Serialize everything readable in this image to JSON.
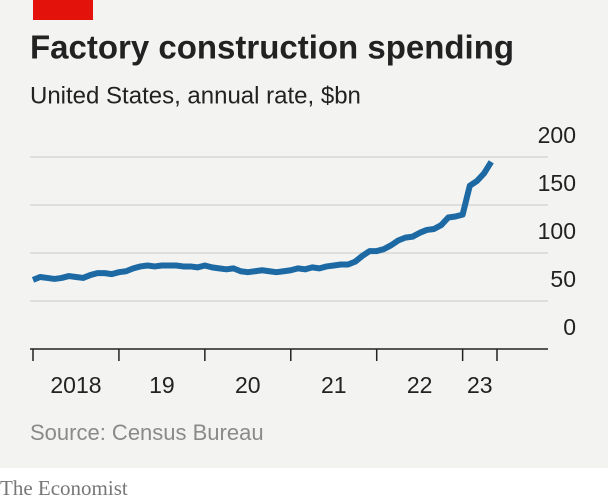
{
  "chart_data": {
    "type": "line",
    "title": "Factory construction spending",
    "subtitle": "United States, annual rate, $bn",
    "source": "Source: Census Bureau",
    "credit": "The Economist",
    "x": [
      2018,
      2018.083,
      2018.167,
      2018.25,
      2018.333,
      2018.417,
      2018.5,
      2018.583,
      2018.667,
      2018.75,
      2018.833,
      2018.917,
      2019,
      2019.083,
      2019.167,
      2019.25,
      2019.333,
      2019.417,
      2019.5,
      2019.583,
      2019.667,
      2019.75,
      2019.833,
      2019.917,
      2020,
      2020.083,
      2020.167,
      2020.25,
      2020.333,
      2020.417,
      2020.5,
      2020.583,
      2020.667,
      2020.75,
      2020.833,
      2020.917,
      2021,
      2021.083,
      2021.167,
      2021.25,
      2021.333,
      2021.417,
      2021.5,
      2021.583,
      2021.667,
      2021.75,
      2021.833,
      2021.917,
      2022,
      2022.083,
      2022.167,
      2022.25,
      2022.333,
      2022.417,
      2022.5,
      2022.583,
      2022.667,
      2022.75,
      2022.833,
      2022.917,
      2023,
      2023.083,
      2023.167,
      2023.25,
      2023.333
    ],
    "series": [
      {
        "name": "Factory construction spending",
        "color": "#1c69a4",
        "values": [
          72,
          75,
          74,
          73,
          74,
          76,
          75,
          74,
          77,
          79,
          79,
          78,
          80,
          81,
          84,
          86,
          87,
          86,
          87,
          87,
          87,
          86,
          86,
          85,
          87,
          85,
          84,
          83,
          84,
          81,
          80,
          81,
          82,
          81,
          80,
          81,
          82,
          84,
          83,
          85,
          84,
          86,
          87,
          88,
          88,
          91,
          97,
          102,
          102,
          104,
          108,
          113,
          116,
          117,
          121,
          124,
          125,
          129,
          137,
          138,
          140,
          170,
          175,
          183,
          195
        ]
      }
    ],
    "xlim": [
      2018,
      2023.4
    ],
    "xticks": [
      {
        "value": 2018,
        "label": "2018"
      },
      {
        "value": 2019,
        "label": "19"
      },
      {
        "value": 2020,
        "label": "20"
      },
      {
        "value": 2021,
        "label": "21"
      },
      {
        "value": 2022,
        "label": "22"
      },
      {
        "value": 2023,
        "label": "23"
      }
    ],
    "ylim": [
      0,
      200
    ],
    "yticks": [
      0,
      50,
      100,
      150,
      200
    ],
    "grid": true
  }
}
